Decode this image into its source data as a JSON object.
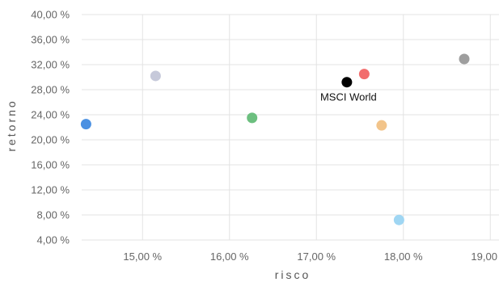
{
  "chart_data": {
    "type": "scatter",
    "title": "",
    "xlabel": "risco",
    "ylabel": "retorno",
    "xlim": [
      14.3,
      19.1
    ],
    "ylim": [
      4,
      40
    ],
    "xticks": [
      "15,00 %",
      "16,00 %",
      "17,00 %",
      "18,00 %",
      "19,00 %"
    ],
    "xtick_values": [
      15,
      16,
      17,
      18,
      19
    ],
    "yticks": [
      "4,00 %",
      "8,00 %",
      "12,00 %",
      "16,00 %",
      "20,00 %",
      "24,00 %",
      "28,00 %",
      "32,00 %",
      "36,00 %",
      "40,00 %"
    ],
    "ytick_values": [
      4,
      8,
      12,
      16,
      20,
      24,
      28,
      32,
      36,
      40
    ],
    "grid": true,
    "points": [
      {
        "x": 14.35,
        "y": 22.5,
        "color": "#4a90e2"
      },
      {
        "x": 15.15,
        "y": 30.2,
        "color": "#c6c9da"
      },
      {
        "x": 16.26,
        "y": 23.5,
        "color": "#6cbf7f"
      },
      {
        "x": 17.35,
        "y": 29.2,
        "color": "#000000",
        "label": "MSCI World"
      },
      {
        "x": 17.55,
        "y": 30.5,
        "color": "#f26d6d"
      },
      {
        "x": 17.75,
        "y": 22.3,
        "color": "#f2c48a"
      },
      {
        "x": 17.95,
        "y": 7.2,
        "color": "#9fd6f3"
      },
      {
        "x": 18.7,
        "y": 32.9,
        "color": "#9e9e9e"
      }
    ]
  }
}
